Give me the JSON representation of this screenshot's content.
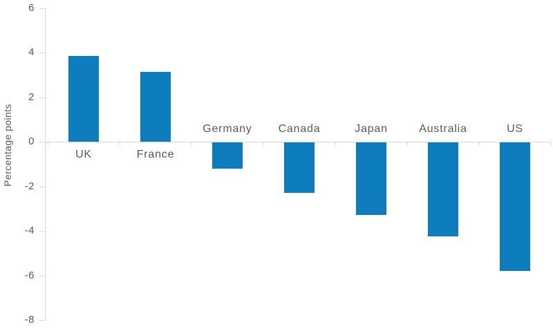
{
  "chart_data": {
    "type": "bar",
    "title": "",
    "xlabel": "",
    "ylabel": "Percentage points",
    "categories": [
      "UK",
      "France",
      "Germany",
      "Canada",
      "Japan",
      "Australia",
      "US"
    ],
    "values": [
      3.85,
      3.15,
      -1.2,
      -2.3,
      -3.3,
      -4.25,
      -5.8
    ],
    "ylim": [
      -8,
      6
    ],
    "yticks": [
      6,
      4,
      2,
      0,
      -2,
      -4,
      -6,
      -8
    ],
    "grid": false,
    "legend": "none",
    "bar_color": "#0d7dbe",
    "axis_color": "#d9d9d9",
    "text_color": "#58595b"
  }
}
